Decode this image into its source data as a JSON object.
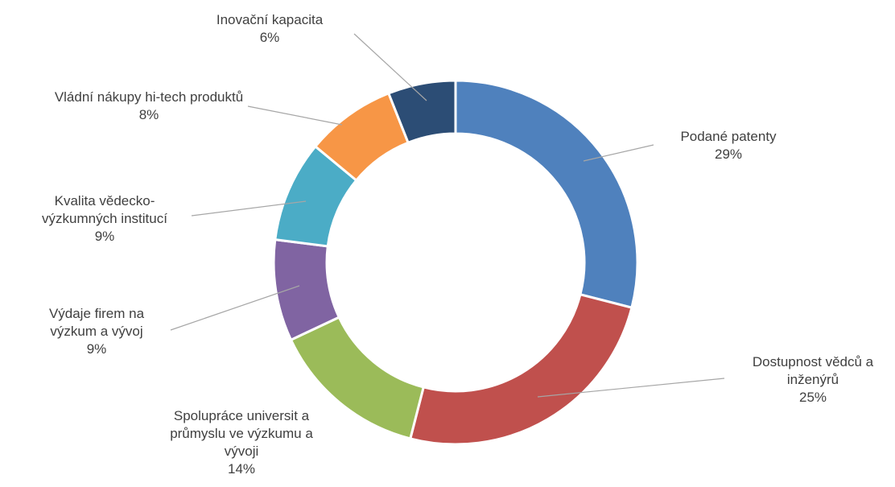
{
  "chart_data": {
    "type": "donut",
    "categories": [
      "Podané patenty",
      "Dostupnost vědců a inženýrů",
      "Spolupráce universit a průmyslu ve výzkumu a vývoji",
      "Výdaje firem na výzkum a vývoj",
      "Kvalita vědecko-výzkumných institucí",
      "Vládní nákupy hi-tech produktů",
      "Inovační kapacita"
    ],
    "values": [
      29,
      25,
      14,
      9,
      9,
      8,
      6
    ],
    "value_labels": [
      "29%",
      "25%",
      "14%",
      "9%",
      "9%",
      "8%",
      "6%"
    ],
    "colors": [
      "#4f81bd",
      "#c0504d",
      "#9bbb59",
      "#8064a2",
      "#4bacc6",
      "#f79646",
      "#2c4d75"
    ]
  }
}
